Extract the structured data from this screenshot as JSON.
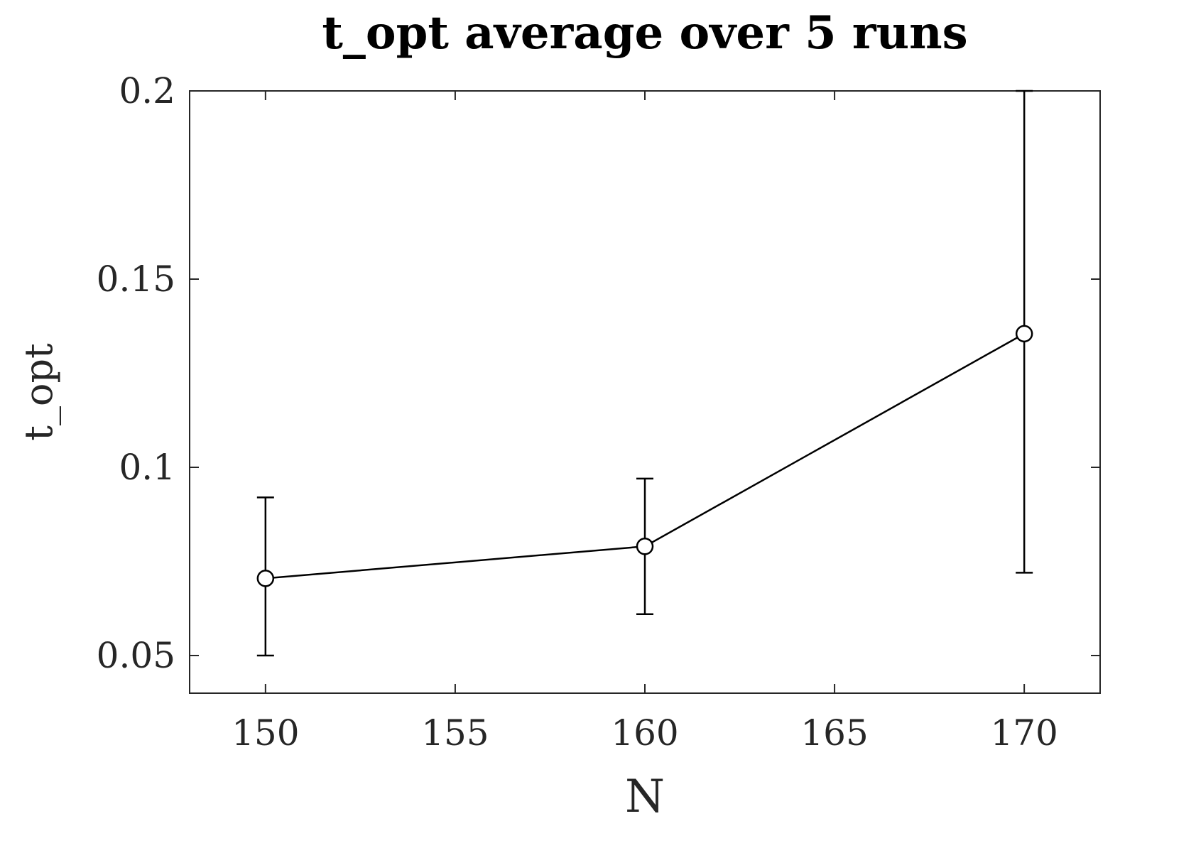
{
  "chart_data": {
    "type": "line",
    "title": "t_opt average over 5 runs",
    "xlabel": "N",
    "ylabel": "t_opt",
    "xlim": [
      148,
      172
    ],
    "ylim": [
      0.04,
      0.2
    ],
    "xticks": [
      150,
      155,
      160,
      165,
      170
    ],
    "xtick_labels": [
      "150",
      "155",
      "160",
      "165",
      "170"
    ],
    "yticks": [
      0.05,
      0.1,
      0.15,
      0.2
    ],
    "ytick_labels": [
      "0.05",
      "0.1",
      "0.15",
      "0.2"
    ],
    "grid": false,
    "box": true,
    "marker": "open-circle",
    "error_bars": true,
    "series": [
      {
        "x": [
          150,
          160,
          170
        ],
        "y": [
          0.0705,
          0.079,
          0.1355
        ],
        "yerr_lower": [
          0.0205,
          0.018,
          0.0635
        ],
        "yerr_upper": [
          0.0215,
          0.018,
          0.0645
        ],
        "color": "#000000"
      }
    ]
  }
}
